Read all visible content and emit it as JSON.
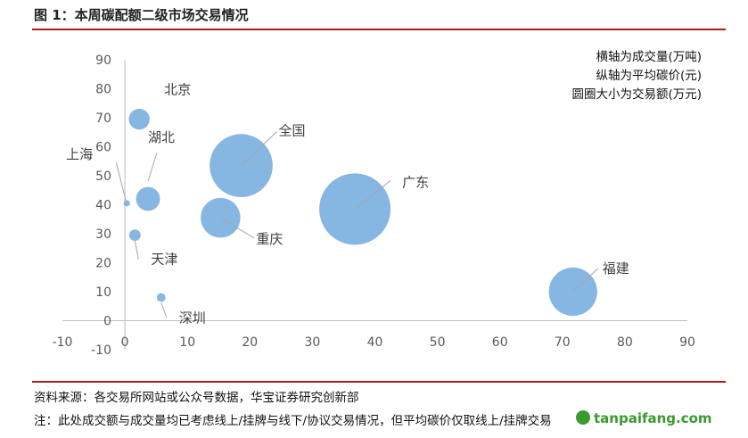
{
  "figure_title": "图 1：本周碳配额二级市场交易情况",
  "chart_data": {
    "type": "scatter",
    "variant": "bubble",
    "x_axis": {
      "min": -10,
      "max": 90,
      "step": 10,
      "ticks": [
        "-10",
        "0",
        "10",
        "20",
        "30",
        "40",
        "50",
        "60",
        "70",
        "80",
        "90"
      ]
    },
    "y_axis": {
      "min": -10,
      "max": 90,
      "step": 10,
      "ticks": [
        "-10",
        "0",
        "10",
        "20",
        "30",
        "40",
        "50",
        "60",
        "70",
        "80",
        "90"
      ]
    },
    "grid": false,
    "legend_lines": [
      "横轴为成交量(万吨)",
      "纵轴为平均碳价(元)",
      "圆圈大小为交易额(万元)"
    ],
    "legend_placement": "top-right",
    "bubble_color": "#7fb2e0",
    "points": [
      {
        "name": "北京",
        "x": 2.3,
        "y": 69.5,
        "size": 160
      },
      {
        "name": "湖北",
        "x": 3.7,
        "y": 42,
        "size": 210
      },
      {
        "name": "上海",
        "x": 0.3,
        "y": 40.5,
        "size": 4
      },
      {
        "name": "天津",
        "x": 1.6,
        "y": 29.5,
        "size": 48
      },
      {
        "name": "深圳",
        "x": 5.8,
        "y": 8,
        "size": 28
      },
      {
        "name": "全国",
        "x": 18.6,
        "y": 53.5,
        "size": 1460
      },
      {
        "name": "重庆",
        "x": 15.3,
        "y": 35.5,
        "size": 580
      },
      {
        "name": "广东",
        "x": 36.8,
        "y": 38.5,
        "size": 1870
      },
      {
        "name": "福建",
        "x": 71.7,
        "y": 10,
        "size": 860
      }
    ]
  },
  "source_note": "资料来源：各交易所网站或公众号数据，华宝证券研究创新部",
  "footnote": "注：此处成交额与成交量均已考虑线上/挂牌与线下/协议交易情况，但平均碳价仅取线上/挂牌交易",
  "watermark": "tanpaifang.com"
}
